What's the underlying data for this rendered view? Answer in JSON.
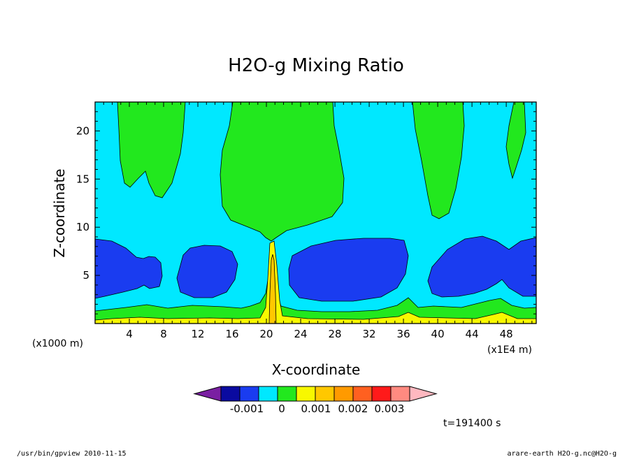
{
  "chart_data": {
    "type": "contour",
    "title": "H2O-g Mixing Ratio",
    "xlabel": "X-coordinate",
    "ylabel": "Z-coordinate",
    "x_unit": "(x1E4 m)",
    "y_unit": "(x1000 m)",
    "xlim": [
      0,
      51.5
    ],
    "ylim": [
      0,
      23
    ],
    "x_ticks": [
      4,
      8,
      12,
      16,
      20,
      24,
      28,
      32,
      36,
      40,
      44,
      48
    ],
    "y_ticks": [
      5,
      10,
      15,
      20
    ],
    "colorbar": {
      "colors": [
        "#7a1fa2",
        "#0a0aa0",
        "#1a3cf0",
        "#00e8ff",
        "#22e81e",
        "#f8f800",
        "#ffc800",
        "#ff9a00",
        "#ff6020",
        "#ff1a1a",
        "#ff8a80",
        "#ffb8c0"
      ],
      "labels": [
        "-0.001",
        "0",
        "0.001",
        "0.002",
        "0.003"
      ]
    },
    "annotation_time": "t=191400 s"
  },
  "footer": {
    "left": "/usr/bin/gpview   2010-11-15",
    "right": "arare-earth_H2O-g.nc@H2O-g"
  }
}
